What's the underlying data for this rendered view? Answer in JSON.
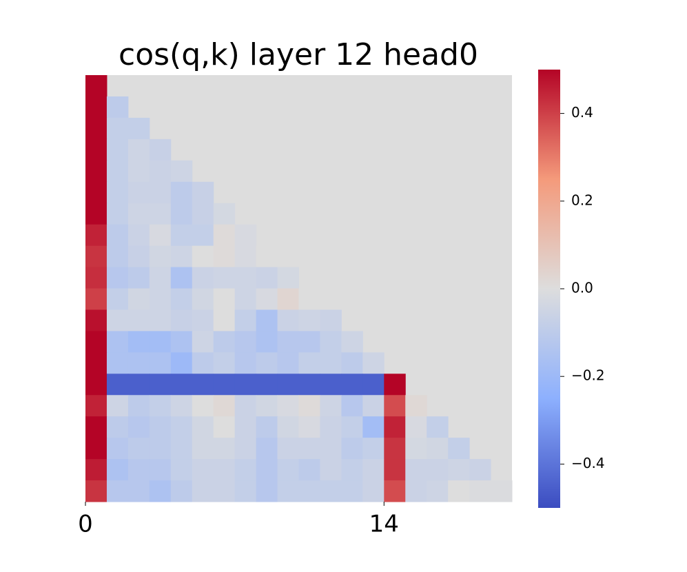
{
  "chart_data": {
    "type": "heatmap",
    "title": "cos(q,k) layer 12 head0",
    "colormap": "coolwarm",
    "xlim": [
      0,
      20
    ],
    "xticks": [
      0,
      14
    ],
    "clim": [
      -0.5,
      0.5
    ],
    "cticks": [
      {
        "value": -0.4,
        "label": "−0.4"
      },
      {
        "value": -0.2,
        "label": "−0.2"
      },
      {
        "value": 0.0,
        "label": "0.0"
      },
      0.2,
      0.4
    ],
    "z": [
      [
        0.5,
        null,
        null,
        null,
        null,
        null,
        null,
        null,
        null,
        null,
        null,
        null,
        null,
        null,
        null,
        null,
        null,
        null,
        null,
        null
      ],
      [
        0.5,
        -0.1,
        null,
        null,
        null,
        null,
        null,
        null,
        null,
        null,
        null,
        null,
        null,
        null,
        null,
        null,
        null,
        null,
        null,
        null
      ],
      [
        0.5,
        -0.08,
        -0.08,
        null,
        null,
        null,
        null,
        null,
        null,
        null,
        null,
        null,
        null,
        null,
        null,
        null,
        null,
        null,
        null,
        null
      ],
      [
        0.5,
        -0.08,
        -0.05,
        -0.07,
        null,
        null,
        null,
        null,
        null,
        null,
        null,
        null,
        null,
        null,
        null,
        null,
        null,
        null,
        null,
        null
      ],
      [
        0.5,
        -0.08,
        -0.05,
        -0.06,
        -0.05,
        null,
        null,
        null,
        null,
        null,
        null,
        null,
        null,
        null,
        null,
        null,
        null,
        null,
        null,
        null
      ],
      [
        0.5,
        -0.08,
        -0.06,
        -0.06,
        -0.1,
        -0.07,
        null,
        null,
        null,
        null,
        null,
        null,
        null,
        null,
        null,
        null,
        null,
        null,
        null,
        null
      ],
      [
        0.5,
        -0.08,
        -0.05,
        -0.05,
        -0.1,
        -0.07,
        -0.03,
        null,
        null,
        null,
        null,
        null,
        null,
        null,
        null,
        null,
        null,
        null,
        null,
        null
      ],
      [
        0.45,
        -0.1,
        -0.06,
        -0.02,
        -0.08,
        -0.08,
        0.01,
        -0.02,
        null,
        null,
        null,
        null,
        null,
        null,
        null,
        null,
        null,
        null,
        null,
        null
      ],
      [
        0.42,
        -0.1,
        -0.07,
        -0.04,
        -0.05,
        0,
        0.01,
        -0.02,
        0,
        null,
        null,
        null,
        null,
        null,
        null,
        null,
        null,
        null,
        null,
        null
      ],
      [
        0.43,
        -0.12,
        -0.1,
        -0.05,
        -0.15,
        -0.06,
        -0.05,
        -0.05,
        -0.06,
        -0.03,
        null,
        null,
        null,
        null,
        null,
        null,
        null,
        null,
        null,
        null
      ],
      [
        0.4,
        -0.08,
        -0.04,
        -0.05,
        -0.08,
        -0.04,
        0,
        -0.05,
        -0.02,
        0.03,
        0,
        null,
        null,
        null,
        null,
        null,
        null,
        null,
        null,
        null
      ],
      [
        0.48,
        -0.05,
        -0.05,
        -0.05,
        -0.07,
        -0.06,
        0,
        -0.08,
        -0.15,
        -0.06,
        -0.05,
        -0.06,
        null,
        null,
        null,
        null,
        null,
        null,
        null,
        null
      ],
      [
        0.5,
        -0.15,
        -0.18,
        -0.18,
        -0.15,
        -0.05,
        -0.1,
        -0.12,
        -0.15,
        -0.12,
        -0.12,
        -0.08,
        -0.05,
        null,
        null,
        null,
        null,
        null,
        null,
        null
      ],
      [
        0.5,
        -0.15,
        -0.15,
        -0.15,
        -0.2,
        -0.1,
        -0.08,
        -0.12,
        -0.1,
        -0.12,
        -0.08,
        -0.08,
        -0.1,
        -0.05,
        null,
        null,
        null,
        null,
        null,
        null
      ],
      [
        0.5,
        -0.45,
        -0.45,
        -0.45,
        -0.45,
        -0.45,
        -0.45,
        -0.45,
        -0.45,
        -0.45,
        -0.45,
        -0.45,
        -0.45,
        -0.45,
        0.5,
        null,
        null,
        null,
        null,
        null
      ],
      [
        0.45,
        -0.05,
        -0.1,
        -0.08,
        -0.05,
        0,
        0.02,
        -0.06,
        -0.04,
        -0.02,
        0.01,
        -0.05,
        -0.12,
        -0.06,
        0.38,
        0.02,
        null,
        null,
        null,
        null
      ],
      [
        0.5,
        -0.1,
        -0.12,
        -0.1,
        -0.08,
        -0.04,
        0,
        -0.06,
        -0.1,
        -0.04,
        -0.02,
        -0.06,
        -0.08,
        -0.18,
        0.45,
        -0.02,
        -0.08,
        null,
        null,
        null
      ],
      [
        0.5,
        -0.12,
        -0.1,
        -0.1,
        -0.08,
        -0.04,
        -0.04,
        -0.06,
        -0.12,
        -0.06,
        -0.06,
        -0.06,
        -0.1,
        -0.08,
        0.42,
        -0.03,
        -0.04,
        -0.08,
        null,
        null
      ],
      [
        0.46,
        -0.15,
        -0.12,
        -0.12,
        -0.08,
        -0.06,
        -0.06,
        -0.08,
        -0.12,
        -0.08,
        -0.1,
        -0.06,
        -0.08,
        -0.06,
        0.42,
        -0.06,
        -0.06,
        -0.05,
        -0.06,
        null
      ],
      [
        0.42,
        -0.12,
        -0.12,
        -0.15,
        -0.1,
        -0.06,
        -0.06,
        -0.08,
        -0.12,
        -0.08,
        -0.08,
        -0.08,
        -0.08,
        -0.06,
        0.38,
        -0.06,
        -0.05,
        0,
        -0.01,
        -0.01
      ]
    ]
  }
}
